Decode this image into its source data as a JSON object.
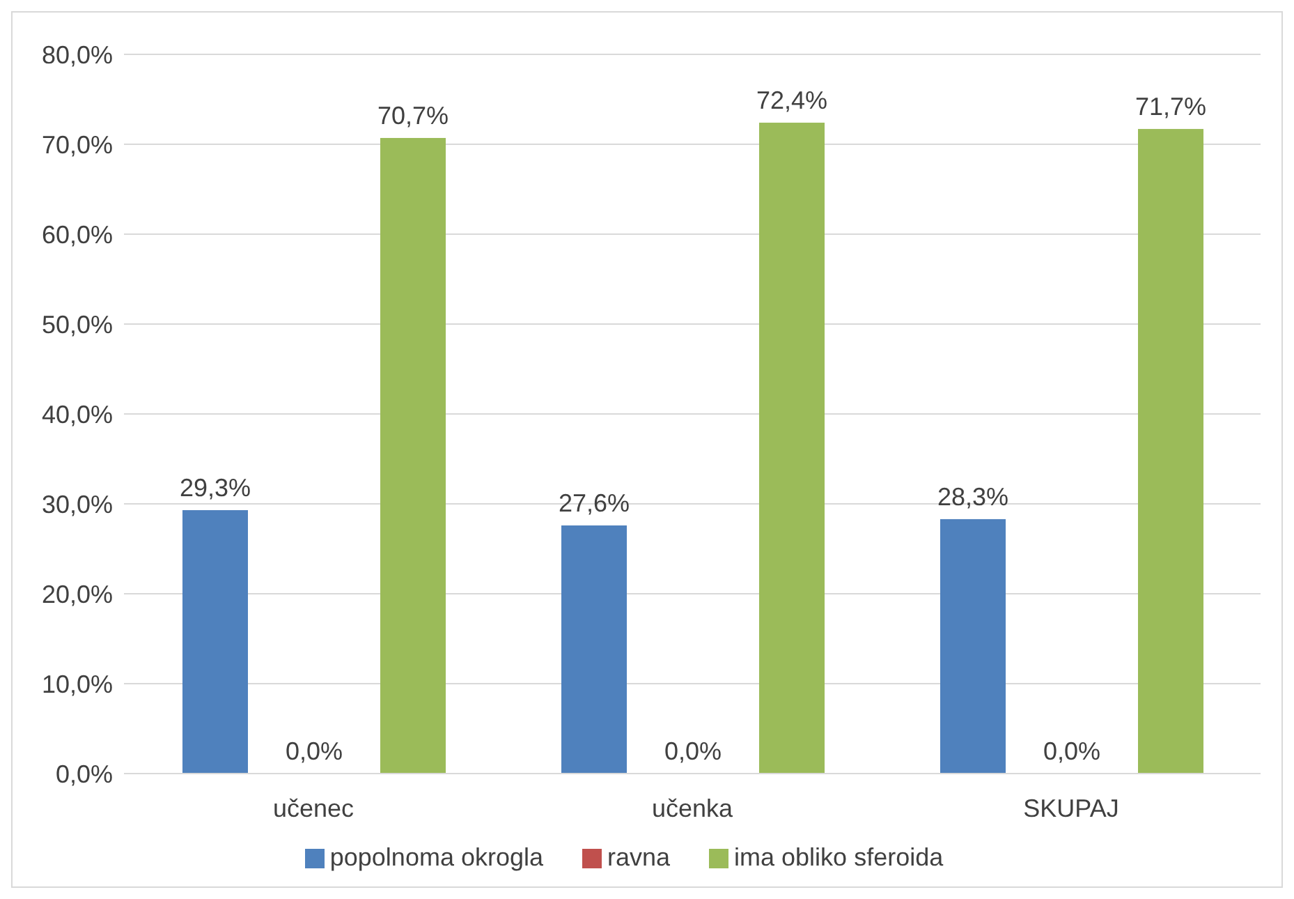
{
  "chart_data": {
    "type": "bar",
    "categories": [
      "učenec",
      "učenka",
      "SKUPAJ"
    ],
    "series": [
      {
        "name": "popolnoma okrogla",
        "color": "#4f81bd",
        "values": [
          29.3,
          27.6,
          28.3
        ],
        "value_labels": [
          "29,3%",
          "27,6%",
          "28,3%"
        ]
      },
      {
        "name": "ravna",
        "color": "#c0504d",
        "values": [
          0,
          0,
          0
        ],
        "value_labels": [
          "0,0%",
          "0,0%",
          "0,0%"
        ]
      },
      {
        "name": "ima obliko sferoida",
        "color": "#9bbb59",
        "values": [
          70.7,
          72.4,
          71.7
        ],
        "value_labels": [
          "70,7%",
          "72,4%",
          "71,7%"
        ]
      }
    ],
    "ylim": [
      0,
      80
    ],
    "yticks": [
      {
        "value": 0,
        "label": "0,0%"
      },
      {
        "value": 10,
        "label": "10,0%"
      },
      {
        "value": 20,
        "label": "20,0%"
      },
      {
        "value": 30,
        "label": "30,0%"
      },
      {
        "value": 40,
        "label": "40,0%"
      },
      {
        "value": 50,
        "label": "50,0%"
      },
      {
        "value": 60,
        "label": "60,0%"
      },
      {
        "value": 70,
        "label": "70,0%"
      },
      {
        "value": 80,
        "label": "80,0%"
      }
    ],
    "grid": "y",
    "legend": "bottom"
  }
}
